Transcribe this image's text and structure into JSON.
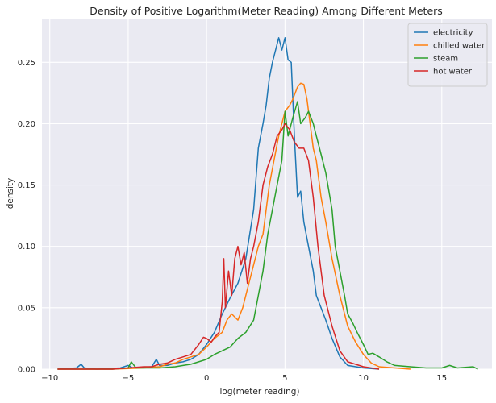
{
  "chart_data": {
    "type": "line",
    "title": "Density of Positive Logarithm(Meter Reading) Among Different Meters",
    "xlabel": "log(meter reading)",
    "ylabel": "density",
    "xlim": [
      -10.5,
      18.2
    ],
    "ylim": [
      0.0,
      0.285
    ],
    "x_ticks": [
      -10,
      -5,
      0,
      5,
      10,
      15
    ],
    "x_tick_labels": [
      "−10",
      "−5",
      "0",
      "5",
      "10",
      "15"
    ],
    "y_ticks": [
      0.0,
      0.05,
      0.1,
      0.15,
      0.2,
      0.25
    ],
    "y_tick_labels": [
      "0.00",
      "0.05",
      "0.10",
      "0.15",
      "0.20",
      "0.25"
    ],
    "grid": true,
    "legend_position": "top-right",
    "background": "#eaeaf2",
    "series": [
      {
        "name": "electricity",
        "color": "#1f77b4",
        "points": [
          [
            -9.5,
            0
          ],
          [
            -8.3,
            0.001
          ],
          [
            -8.0,
            0.004
          ],
          [
            -7.8,
            0.001
          ],
          [
            -7,
            0
          ],
          [
            -5.5,
            0.001
          ],
          [
            -5.0,
            0.003
          ],
          [
            -4.7,
            0.001
          ],
          [
            -3.5,
            0.002
          ],
          [
            -3.2,
            0.008
          ],
          [
            -3.0,
            0.003
          ],
          [
            -2.5,
            0.003
          ],
          [
            -2,
            0.005
          ],
          [
            -1.5,
            0.006
          ],
          [
            -1,
            0.008
          ],
          [
            -0.5,
            0.012
          ],
          [
            0,
            0.02
          ],
          [
            0.5,
            0.03
          ],
          [
            1.0,
            0.045
          ],
          [
            1.5,
            0.058
          ],
          [
            2.0,
            0.07
          ],
          [
            2.5,
            0.09
          ],
          [
            3.0,
            0.13
          ],
          [
            3.3,
            0.18
          ],
          [
            3.6,
            0.2
          ],
          [
            3.8,
            0.215
          ],
          [
            4.0,
            0.237
          ],
          [
            4.2,
            0.25
          ],
          [
            4.4,
            0.26
          ],
          [
            4.6,
            0.27
          ],
          [
            4.8,
            0.26
          ],
          [
            5.0,
            0.27
          ],
          [
            5.2,
            0.252
          ],
          [
            5.4,
            0.25
          ],
          [
            5.6,
            0.19
          ],
          [
            5.8,
            0.14
          ],
          [
            6.0,
            0.145
          ],
          [
            6.2,
            0.12
          ],
          [
            6.5,
            0.1
          ],
          [
            6.8,
            0.08
          ],
          [
            7.0,
            0.06
          ],
          [
            7.3,
            0.05
          ],
          [
            7.6,
            0.04
          ],
          [
            8.0,
            0.025
          ],
          [
            8.5,
            0.01
          ],
          [
            9.0,
            0.003
          ],
          [
            10,
            0.001
          ],
          [
            11,
            0
          ]
        ]
      },
      {
        "name": "chilled water",
        "color": "#ff7f0e",
        "points": [
          [
            -9.5,
            0
          ],
          [
            -6,
            0
          ],
          [
            -4,
            0.001
          ],
          [
            -3,
            0.002
          ],
          [
            -2.5,
            0.004
          ],
          [
            -2,
            0.005
          ],
          [
            -1.5,
            0.008
          ],
          [
            -1,
            0.01
          ],
          [
            -0.5,
            0.012
          ],
          [
            0,
            0.018
          ],
          [
            0.5,
            0.025
          ],
          [
            1.0,
            0.03
          ],
          [
            1.3,
            0.04
          ],
          [
            1.6,
            0.045
          ],
          [
            2.0,
            0.04
          ],
          [
            2.3,
            0.05
          ],
          [
            2.6,
            0.065
          ],
          [
            3.0,
            0.085
          ],
          [
            3.3,
            0.1
          ],
          [
            3.6,
            0.11
          ],
          [
            4.0,
            0.15
          ],
          [
            4.3,
            0.17
          ],
          [
            4.6,
            0.19
          ],
          [
            5.0,
            0.21
          ],
          [
            5.3,
            0.215
          ],
          [
            5.5,
            0.22
          ],
          [
            5.8,
            0.23
          ],
          [
            6.0,
            0.233
          ],
          [
            6.2,
            0.232
          ],
          [
            6.4,
            0.22
          ],
          [
            6.6,
            0.2
          ],
          [
            6.8,
            0.18
          ],
          [
            7.0,
            0.17
          ],
          [
            7.3,
            0.14
          ],
          [
            7.6,
            0.12
          ],
          [
            8.0,
            0.09
          ],
          [
            8.5,
            0.06
          ],
          [
            9.0,
            0.035
          ],
          [
            9.5,
            0.022
          ],
          [
            10.0,
            0.012
          ],
          [
            10.5,
            0.005
          ],
          [
            11,
            0.002
          ],
          [
            12,
            0.001
          ],
          [
            13,
            0
          ]
        ]
      },
      {
        "name": "steam",
        "color": "#2ca02c",
        "points": [
          [
            -9.5,
            0
          ],
          [
            -6,
            0
          ],
          [
            -5.0,
            0.001
          ],
          [
            -4.8,
            0.006
          ],
          [
            -4.5,
            0.001
          ],
          [
            -3,
            0.001
          ],
          [
            -2,
            0.002
          ],
          [
            -1.5,
            0.003
          ],
          [
            -1,
            0.004
          ],
          [
            -0.5,
            0.006
          ],
          [
            0,
            0.008
          ],
          [
            0.5,
            0.012
          ],
          [
            1.0,
            0.015
          ],
          [
            1.5,
            0.018
          ],
          [
            2.0,
            0.025
          ],
          [
            2.5,
            0.03
          ],
          [
            3.0,
            0.04
          ],
          [
            3.3,
            0.06
          ],
          [
            3.6,
            0.08
          ],
          [
            3.9,
            0.11
          ],
          [
            4.2,
            0.13
          ],
          [
            4.5,
            0.15
          ],
          [
            4.8,
            0.17
          ],
          [
            5.0,
            0.21
          ],
          [
            5.2,
            0.19
          ],
          [
            5.5,
            0.205
          ],
          [
            5.8,
            0.218
          ],
          [
            6.0,
            0.2
          ],
          [
            6.3,
            0.205
          ],
          [
            6.5,
            0.21
          ],
          [
            6.8,
            0.2
          ],
          [
            7.0,
            0.19
          ],
          [
            7.3,
            0.175
          ],
          [
            7.6,
            0.16
          ],
          [
            8.0,
            0.13
          ],
          [
            8.2,
            0.1
          ],
          [
            8.5,
            0.08
          ],
          [
            8.8,
            0.06
          ],
          [
            9.0,
            0.045
          ],
          [
            9.3,
            0.038
          ],
          [
            9.6,
            0.03
          ],
          [
            10.0,
            0.02
          ],
          [
            10.3,
            0.012
          ],
          [
            10.6,
            0.013
          ],
          [
            11.0,
            0.01
          ],
          [
            11.5,
            0.006
          ],
          [
            12.0,
            0.003
          ],
          [
            13,
            0.002
          ],
          [
            14,
            0.001
          ],
          [
            15,
            0.001
          ],
          [
            15.5,
            0.003
          ],
          [
            16,
            0.001
          ],
          [
            17,
            0.002
          ],
          [
            17.3,
            0
          ]
        ]
      },
      {
        "name": "hot water",
        "color": "#d62728",
        "points": [
          [
            -9.5,
            0
          ],
          [
            -6,
            0
          ],
          [
            -5,
            0.001
          ],
          [
            -4,
            0.002
          ],
          [
            -3.5,
            0.002
          ],
          [
            -3,
            0.004
          ],
          [
            -2.5,
            0.005
          ],
          [
            -2,
            0.008
          ],
          [
            -1.5,
            0.01
          ],
          [
            -1,
            0.012
          ],
          [
            -0.5,
            0.02
          ],
          [
            -0.2,
            0.026
          ],
          [
            0,
            0.025
          ],
          [
            0.3,
            0.022
          ],
          [
            0.5,
            0.026
          ],
          [
            0.8,
            0.03
          ],
          [
            1.0,
            0.055
          ],
          [
            1.1,
            0.09
          ],
          [
            1.2,
            0.05
          ],
          [
            1.4,
            0.08
          ],
          [
            1.6,
            0.06
          ],
          [
            1.8,
            0.09
          ],
          [
            2.0,
            0.1
          ],
          [
            2.2,
            0.085
          ],
          [
            2.4,
            0.095
          ],
          [
            2.6,
            0.07
          ],
          [
            2.8,
            0.09
          ],
          [
            3.0,
            0.1
          ],
          [
            3.3,
            0.12
          ],
          [
            3.6,
            0.15
          ],
          [
            3.9,
            0.165
          ],
          [
            4.2,
            0.175
          ],
          [
            4.5,
            0.19
          ],
          [
            4.8,
            0.195
          ],
          [
            5.0,
            0.2
          ],
          [
            5.3,
            0.195
          ],
          [
            5.6,
            0.185
          ],
          [
            5.9,
            0.18
          ],
          [
            6.2,
            0.18
          ],
          [
            6.5,
            0.17
          ],
          [
            6.8,
            0.14
          ],
          [
            7.1,
            0.1
          ],
          [
            7.5,
            0.06
          ],
          [
            8.0,
            0.035
          ],
          [
            8.5,
            0.015
          ],
          [
            9.0,
            0.006
          ],
          [
            10,
            0.002
          ],
          [
            11,
            0
          ]
        ]
      }
    ]
  }
}
